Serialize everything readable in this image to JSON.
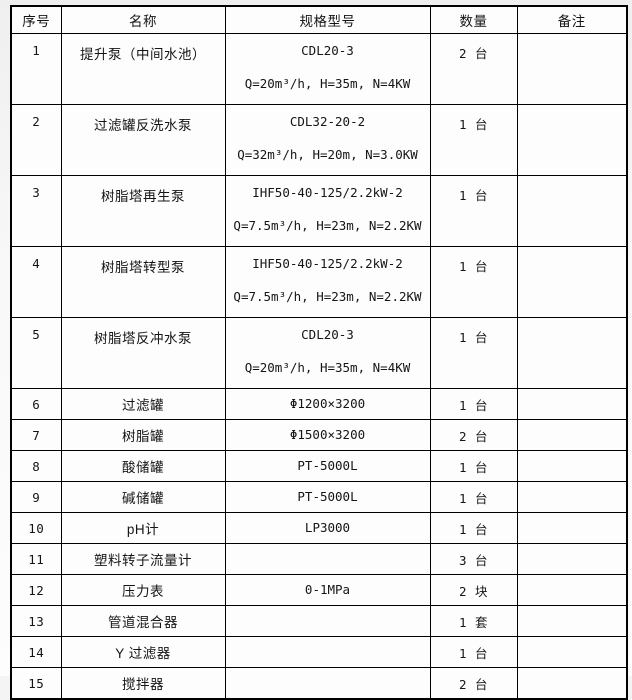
{
  "page": {
    "background": "#f4f4f4",
    "border_color": "#000000",
    "cell_background": "#fdfdfd",
    "text_color": "#151515"
  },
  "table": {
    "headers": [
      "序号",
      "名称",
      "规格型号",
      "数量",
      "备注"
    ],
    "rows": [
      {
        "no": "1",
        "name": "提升泵（中间水池）",
        "spec_lines": [
          "CDL20-3",
          "Q=20m³/h, H=35m, N=4KW"
        ],
        "qty": "2 台",
        "remark": ""
      },
      {
        "no": "2",
        "name": "过滤罐反洗水泵",
        "spec_lines": [
          "CDL32-20-2",
          "Q=32m³/h, H=20m, N=3.0KW"
        ],
        "qty": "1 台",
        "remark": ""
      },
      {
        "no": "3",
        "name": "树脂塔再生泵",
        "spec_lines": [
          "IHF50-40-125/2.2kW-2",
          "Q=7.5m³/h, H=23m, N=2.2KW"
        ],
        "qty": "1 台",
        "remark": ""
      },
      {
        "no": "4",
        "name": "树脂塔转型泵",
        "spec_lines": [
          "IHF50-40-125/2.2kW-2",
          "Q=7.5m³/h, H=23m, N=2.2KW"
        ],
        "qty": "1 台",
        "remark": ""
      },
      {
        "no": "5",
        "name": "树脂塔反冲水泵",
        "spec_lines": [
          "CDL20-3",
          "Q=20m³/h, H=35m, N=4KW"
        ],
        "qty": "1 台",
        "remark": ""
      },
      {
        "no": "6",
        "name": "过滤罐",
        "spec_lines": [
          "Φ1200×3200"
        ],
        "qty": "1 台",
        "remark": ""
      },
      {
        "no": "7",
        "name": "树脂罐",
        "spec_lines": [
          "Φ1500×3200"
        ],
        "qty": "2 台",
        "remark": ""
      },
      {
        "no": "8",
        "name": "酸储罐",
        "spec_lines": [
          "PT-5000L"
        ],
        "qty": "1 台",
        "remark": ""
      },
      {
        "no": "9",
        "name": "碱储罐",
        "spec_lines": [
          "PT-5000L"
        ],
        "qty": "1 台",
        "remark": ""
      },
      {
        "no": "10",
        "name": "pH计",
        "spec_lines": [
          "LP3000"
        ],
        "qty": "1 台",
        "remark": ""
      },
      {
        "no": "11",
        "name": "塑料转子流量计",
        "spec_lines": [],
        "qty": "3 台",
        "remark": ""
      },
      {
        "no": "12",
        "name": "压力表",
        "spec_lines": [
          "0-1MPa"
        ],
        "qty": "2 块",
        "remark": ""
      },
      {
        "no": "13",
        "name": "管道混合器",
        "spec_lines": [],
        "qty": "1 套",
        "remark": ""
      },
      {
        "no": "14",
        "name": "Y 过滤器",
        "spec_lines": [],
        "qty": "1 台",
        "remark": ""
      },
      {
        "no": "15",
        "name": "搅拌器",
        "spec_lines": [],
        "qty": "2 台",
        "remark": ""
      }
    ]
  }
}
